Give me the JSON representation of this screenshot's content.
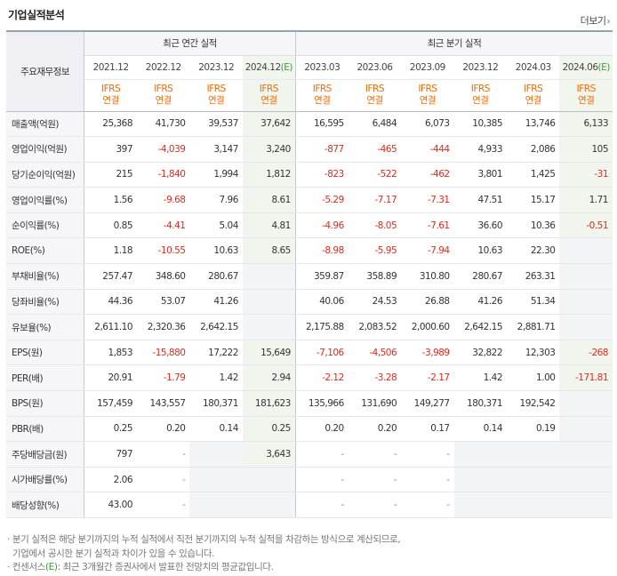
{
  "title": "기업실적분석",
  "more_label": "더보기",
  "more_icon": "chevron-right-icon",
  "row_header_label": "주요재무정보",
  "group_annual": "최근 연간 실적",
  "group_quarter": "최근 분기 실적",
  "standard_line1": "IFRS",
  "standard_line2": "연결",
  "estimate_mark": "(E)",
  "periods": [
    {
      "label": "2021.12",
      "est": false
    },
    {
      "label": "2022.12",
      "est": false
    },
    {
      "label": "2023.12",
      "est": false
    },
    {
      "label": "2024.12",
      "est": true
    },
    {
      "label": "2023.03",
      "est": false
    },
    {
      "label": "2023.06",
      "est": false
    },
    {
      "label": "2023.09",
      "est": false
    },
    {
      "label": "2023.12",
      "est": false
    },
    {
      "label": "2024.03",
      "est": false
    },
    {
      "label": "2024.06",
      "est": true
    }
  ],
  "rows": [
    {
      "label": "매출액(억원)",
      "values": [
        "25,368",
        "41,730",
        "39,537",
        "37,642",
        "16,595",
        "6,484",
        "6,073",
        "10,385",
        "13,746",
        "6,133"
      ]
    },
    {
      "label": "영업이익(억원)",
      "values": [
        "397",
        "-4,039",
        "3,147",
        "3,240",
        "-877",
        "-465",
        "-444",
        "4,933",
        "2,086",
        "105"
      ]
    },
    {
      "label": "당기순이익(억원)",
      "values": [
        "215",
        "-1,840",
        "1,994",
        "1,812",
        "-823",
        "-522",
        "-462",
        "3,801",
        "1,425",
        "-31"
      ]
    },
    {
      "label": "영업이익률(%)",
      "values": [
        "1.56",
        "-9.68",
        "7.96",
        "8.61",
        "-5.29",
        "-7.17",
        "-7.31",
        "47.51",
        "15.17",
        "1.71"
      ]
    },
    {
      "label": "순이익률(%)",
      "values": [
        "0.85",
        "-4.41",
        "5.04",
        "4.81",
        "-4.96",
        "-8.05",
        "-7.61",
        "36.60",
        "10.36",
        "-0.51"
      ]
    },
    {
      "label": "ROE(%)",
      "values": [
        "1.18",
        "-10.55",
        "10.63",
        "8.65",
        "-8.98",
        "-5.95",
        "-7.94",
        "10.63",
        "22.30",
        ""
      ]
    },
    {
      "label": "부채비율(%)",
      "values": [
        "257.47",
        "348.60",
        "280.67",
        "",
        "359.87",
        "358.89",
        "310.80",
        "280.67",
        "263.31",
        ""
      ]
    },
    {
      "label": "당좌비율(%)",
      "values": [
        "44.36",
        "53.07",
        "41.26",
        "",
        "40.06",
        "24.53",
        "26.88",
        "41.26",
        "51.34",
        ""
      ]
    },
    {
      "label": "유보율(%)",
      "values": [
        "2,611.10",
        "2,320.36",
        "2,642.15",
        "",
        "2,175.88",
        "2,083.52",
        "2,000.60",
        "2,642.15",
        "2,881.71",
        ""
      ]
    },
    {
      "label": "EPS(원)",
      "values": [
        "1,853",
        "-15,880",
        "17,222",
        "15,649",
        "-7,106",
        "-4,506",
        "-3,989",
        "32,822",
        "12,303",
        "-268"
      ]
    },
    {
      "label": "PER(배)",
      "values": [
        "20.91",
        "-1.79",
        "1.42",
        "2.94",
        "-2.12",
        "-3.28",
        "-2.17",
        "1.42",
        "1.00",
        "-171.81"
      ]
    },
    {
      "label": "BPS(원)",
      "values": [
        "157,459",
        "143,557",
        "180,371",
        "181,623",
        "135,966",
        "131,690",
        "149,277",
        "180,371",
        "192,542",
        ""
      ]
    },
    {
      "label": "PBR(배)",
      "values": [
        "0.25",
        "0.20",
        "0.14",
        "0.25",
        "0.20",
        "0.20",
        "0.17",
        "0.14",
        "0.19",
        ""
      ]
    },
    {
      "label": "주당배당금(원)",
      "values": [
        "797",
        "-",
        "",
        "3,643",
        "-",
        "-",
        "-",
        "",
        "",
        ""
      ]
    },
    {
      "label": "시가배당률(%)",
      "values": [
        "2.06",
        "-",
        "",
        "",
        "-",
        "-",
        "-",
        "",
        "",
        ""
      ]
    },
    {
      "label": "배당성향(%)",
      "values": [
        "43.00",
        "-",
        "",
        "",
        "-",
        "-",
        "-",
        "",
        "",
        ""
      ]
    }
  ],
  "group_break_rows": [
    3,
    6,
    9,
    13
  ],
  "notes": {
    "line1": "분기 실적은 해당 분기까지의 누적 실적에서 직전 분기까지의 누적 실적을 차감하는 방식으로 계산되므로,",
    "line2": "기업에서 공시한 분기 실적과 차이가 있을 수 있습니다.",
    "line3_prefix": "컨센서스",
    "line3_suffix": ": 최근 3개월간 증권사에서 발표한 전망치의 평균값입니다."
  },
  "colors": {
    "negative": "#e0291d",
    "standard": "#f06a00",
    "estimate_mark": "#3d9a3a",
    "estimate_bg": "#f0f6ee"
  }
}
